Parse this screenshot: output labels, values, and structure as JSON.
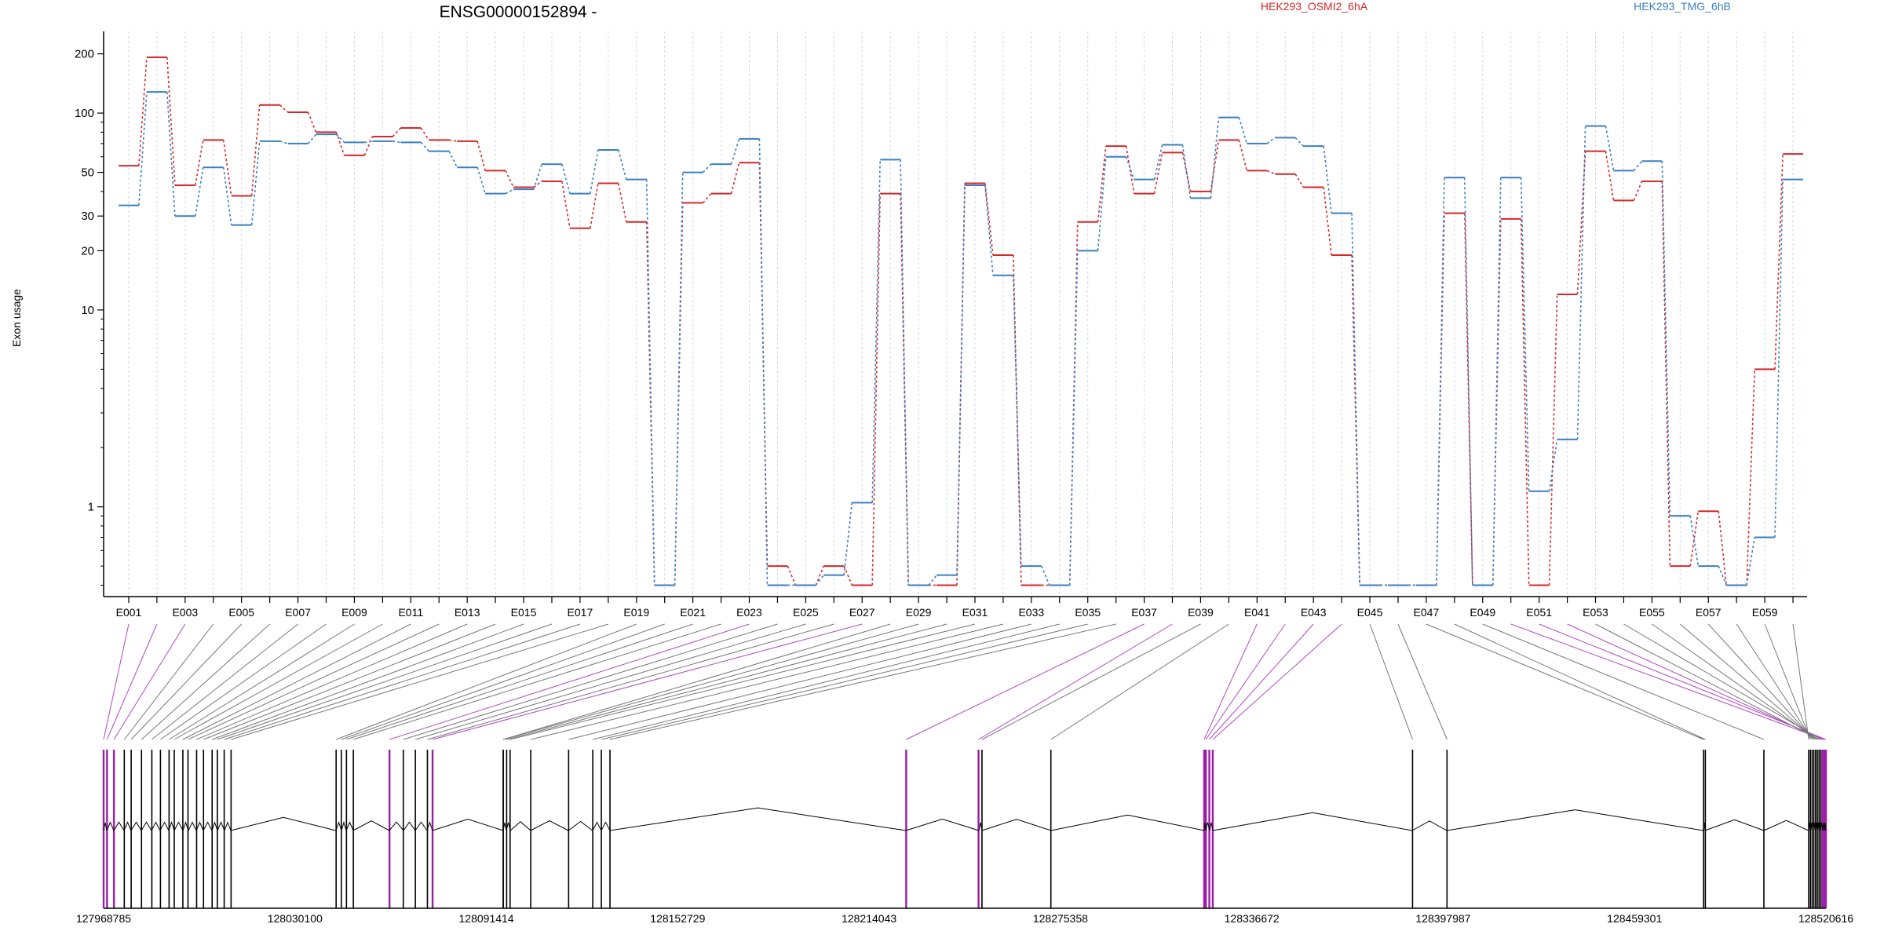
{
  "chart_data": {
    "type": "line",
    "title": "ENSG00000152894 -",
    "ylabel": "Exon usage",
    "y_scale": "log",
    "ylim": [
      0.35,
      260
    ],
    "y_ticks": [
      1,
      10,
      20,
      30,
      50,
      100,
      200
    ],
    "y_tick_labels": [
      "1",
      "10",
      "20",
      "30",
      "50",
      "100",
      "200"
    ],
    "categories": [
      "E001",
      "E002",
      "E003",
      "E004",
      "E005",
      "E006",
      "E007",
      "E008",
      "E009",
      "E010",
      "E011",
      "E012",
      "E013",
      "E014",
      "E015",
      "E016",
      "E017",
      "E018",
      "E019",
      "E020",
      "E021",
      "E022",
      "E023",
      "E024",
      "E025",
      "E026",
      "E027",
      "E028",
      "E029",
      "E030",
      "E031",
      "E032",
      "E033",
      "E034",
      "E035",
      "E036",
      "E037",
      "E038",
      "E039",
      "E040",
      "E041",
      "E042",
      "E043",
      "E044",
      "E045",
      "E046",
      "E047",
      "E048",
      "E049",
      "E050",
      "E051",
      "E052",
      "E053",
      "E054",
      "E055",
      "E056",
      "E057",
      "E058",
      "E059",
      "E060"
    ],
    "x_tick_labels": [
      "E001",
      "E003",
      "E005",
      "E007",
      "E009",
      "E011",
      "E013",
      "E015",
      "E017",
      "E019",
      "E021",
      "E023",
      "E025",
      "E027",
      "E029",
      "E031",
      "E033",
      "E035",
      "E037",
      "E039",
      "E041",
      "E043",
      "E045",
      "E047",
      "E049",
      "E051",
      "E053",
      "E055",
      "E057",
      "E059"
    ],
    "legend_placement": "top",
    "series": [
      {
        "name": "HEK293_OSMI2_6hA",
        "color": "#d62728",
        "values": [
          54,
          192,
          43,
          73,
          38,
          110,
          101,
          80,
          61,
          76,
          84,
          73,
          72,
          51,
          42,
          45,
          26,
          44,
          28,
          0.4,
          35,
          39,
          56,
          0.5,
          0.4,
          0.5,
          0.4,
          39,
          0.4,
          0.4,
          44,
          19,
          0.4,
          0.4,
          28,
          68,
          39,
          63,
          40,
          73,
          51,
          49,
          42,
          19,
          0.4,
          0.4,
          0.4,
          31,
          0.4,
          29,
          0.4,
          12,
          64,
          36,
          45,
          0.5,
          0.95,
          0.4,
          5,
          62
        ]
      },
      {
        "name": "HEK293_TMG_6hB",
        "color": "#3a7fc2",
        "values": [
          34,
          128,
          30,
          53,
          27,
          72,
          70,
          78,
          71,
          72,
          71,
          64,
          53,
          39,
          41,
          55,
          39,
          65,
          46,
          0.4,
          50,
          55,
          74,
          0.4,
          0.4,
          0.45,
          1.05,
          58,
          0.4,
          0.45,
          43,
          15,
          0.5,
          0.4,
          20,
          60,
          46,
          69,
          37,
          95,
          70,
          75,
          68,
          31,
          0.4,
          0.4,
          0.4,
          47,
          0.4,
          47,
          1.2,
          2.2,
          86,
          51,
          57,
          0.9,
          0.5,
          0.4,
          0.7,
          46
        ]
      }
    ],
    "genomic_axis": {
      "tick_labels": [
        "127968785",
        "128030100",
        "128091414",
        "128152729",
        "128214043",
        "128275358",
        "128336672",
        "128397987",
        "128459301",
        "128520616"
      ]
    }
  }
}
